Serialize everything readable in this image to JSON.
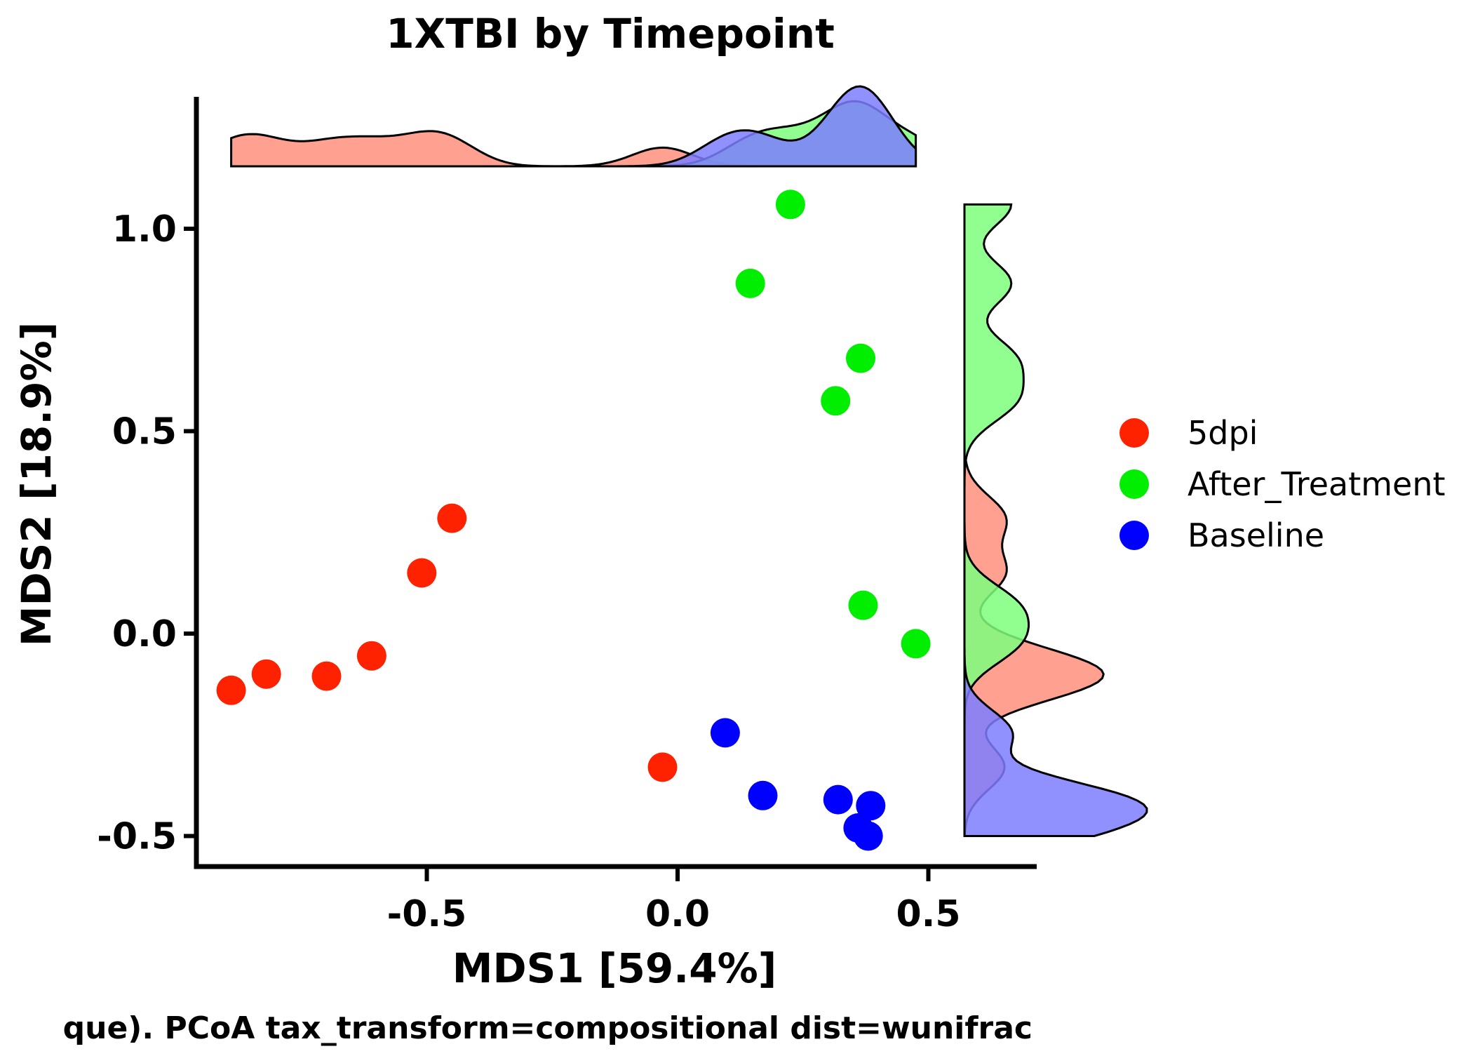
{
  "chart_data": {
    "type": "scatter",
    "title": "1XTBI by Timepoint",
    "xlabel": "MDS1 [59.4%]",
    "ylabel": "MDS2 [18.9%]",
    "caption": "que). PCoA tax_transform=compositional dist=wunifrac",
    "xlim": [
      -0.95,
      0.72
    ],
    "ylim": [
      -0.58,
      1.27
    ],
    "xticks": [
      -0.5,
      0.0,
      0.5
    ],
    "xtick_labels": [
      "-0.5",
      "0.0",
      "0.5"
    ],
    "yticks": [
      -0.5,
      0.0,
      0.5,
      1.0
    ],
    "ytick_labels": [
      "-0.5",
      "0.0",
      "0.5",
      "1.0"
    ],
    "grid": false,
    "legend_position": "right",
    "marginal_density": true,
    "series": [
      {
        "name": "5dpi",
        "color": "#ff2200",
        "density_fill": "#ff8f7e",
        "points": [
          {
            "x": -0.89,
            "y": -0.14
          },
          {
            "x": -0.82,
            "y": -0.1
          },
          {
            "x": -0.7,
            "y": -0.105
          },
          {
            "x": -0.61,
            "y": -0.055
          },
          {
            "x": -0.51,
            "y": 0.15
          },
          {
            "x": -0.45,
            "y": 0.285
          },
          {
            "x": -0.03,
            "y": -0.33
          }
        ]
      },
      {
        "name": "After_Treatment",
        "color": "#00ee00",
        "density_fill": "#7dff7d",
        "points": [
          {
            "x": 0.225,
            "y": 1.06
          },
          {
            "x": 0.145,
            "y": 0.865
          },
          {
            "x": 0.365,
            "y": 0.68
          },
          {
            "x": 0.315,
            "y": 0.575
          },
          {
            "x": 0.37,
            "y": 0.07
          },
          {
            "x": 0.475,
            "y": -0.025
          }
        ]
      },
      {
        "name": "Baseline",
        "color": "#0000ff",
        "density_fill": "#7c7cff",
        "points": [
          {
            "x": 0.095,
            "y": -0.245
          },
          {
            "x": 0.17,
            "y": -0.4
          },
          {
            "x": 0.32,
            "y": -0.41
          },
          {
            "x": 0.385,
            "y": -0.425
          },
          {
            "x": 0.36,
            "y": -0.48
          },
          {
            "x": 0.38,
            "y": -0.5
          }
        ]
      }
    ]
  }
}
